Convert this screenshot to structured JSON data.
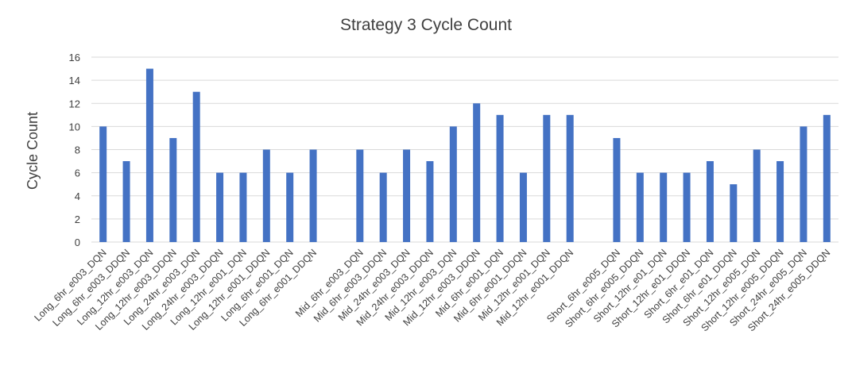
{
  "chart_data": {
    "type": "bar",
    "title": "Strategy 3 Cycle Count",
    "xlabel": "",
    "ylabel": "Cycle Count",
    "ylim": [
      0,
      16
    ],
    "yticks": [
      0,
      2,
      4,
      6,
      8,
      10,
      12,
      14,
      16
    ],
    "grid": true,
    "legend": "none",
    "bar_color": "#4472C4",
    "categories": [
      "Long_6hr_e003_DQN",
      "Long_6hr_e003_DDQN",
      "Long_12hr_e003_DQN",
      "Long_12hr_e003_DDQN",
      "Long_24hr_e003_DQN",
      "Long_24hr_e003_DDQN",
      "Long_12hr_e001_DQN",
      "Long_12hr_e001_DDQN",
      "Long_6hr_e001_DQN",
      "Long_6hr_e001_DDQN",
      "",
      "Mid_6hr_e003_DQN",
      "Mid_6hr_e003_DDQN",
      "Mid_24hr_e003_DQN",
      "Mid_24hr_e003_DDQN",
      "Mid_12hr_e003_DQN",
      "Mid_12hr_e003_DDQN",
      "Mid_6hr_e001_DQN",
      "Mid_6hr_e001_DDQN",
      "Mid_12hr_e001_DQN",
      "Mid_12hr_e001_DDQN",
      "",
      "Short_6hr_e005_DQN",
      "Short_6hr_e005_DDQN",
      "Short_12hr_e01_DQN",
      "Short_12hr_e01_DDQN",
      "Short_6hr_e01_DQN",
      "Short_6hr_e01_DDQN",
      "Short_12hr_e005_DQN",
      "Short_12hr_e005_DDQN",
      "Short_24hr_e005_DQN",
      "Short_24hr_e005_DDQN"
    ],
    "values": [
      10,
      7,
      15,
      9,
      13,
      6,
      6,
      8,
      6,
      8,
      null,
      8,
      6,
      8,
      7,
      10,
      12,
      11,
      6,
      11,
      11,
      null,
      9,
      6,
      6,
      6,
      7,
      5,
      8,
      7,
      10,
      11
    ]
  }
}
